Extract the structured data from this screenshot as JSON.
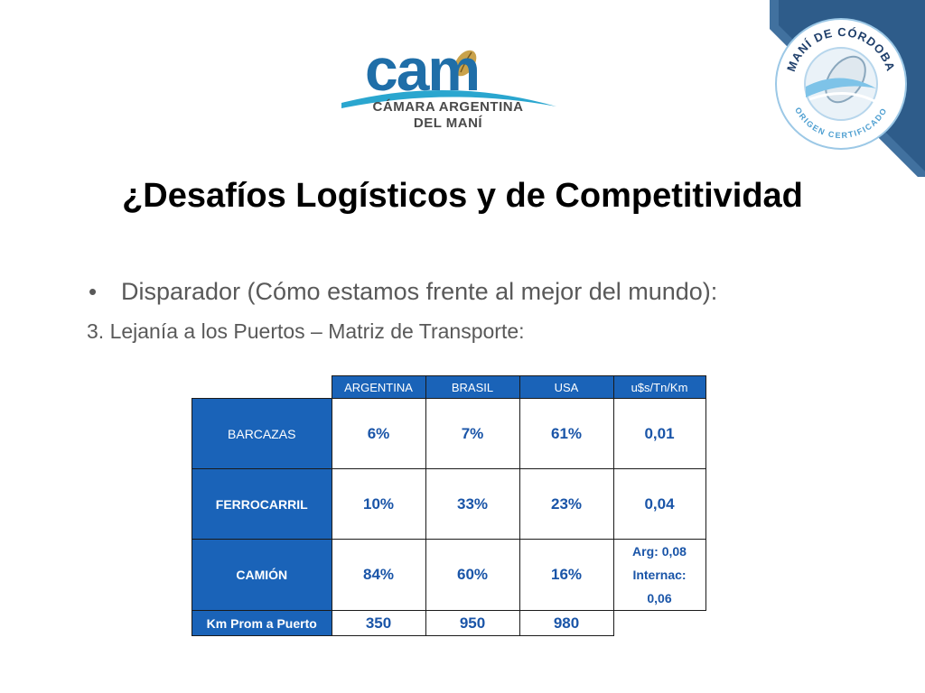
{
  "logo": {
    "wordmark": "cam",
    "line1": "CÁMARA ARGENTINA",
    "line2": "DEL MANÍ"
  },
  "seal": {
    "top_text": "MANÍ DE CÓRDOBA",
    "bottom_text": "ORIGEN CERTIFICADO"
  },
  "colors": {
    "accent_blue": "#1a63b8",
    "corner_blue": "#2e5c8a",
    "text_gray": "#595959",
    "logo_blue": "#1f6ea8"
  },
  "slide": {
    "title": "¿Desafíos Logísticos y de Competitividad",
    "bullet_marker": "•",
    "bullet": "Disparador (Cómo estamos frente al mejor del mundo):",
    "sub": "3.  Lejanía a los Puertos – Matriz de Transporte:"
  },
  "table": {
    "headers": [
      "ARGENTINA",
      "BRASIL",
      "USA",
      "u$s/Tn/Km"
    ],
    "rows": [
      {
        "label": "BARCAZAS",
        "values": [
          "6%",
          "7%",
          "61%"
        ],
        "cost": "0,01"
      },
      {
        "label": "FERROCARRIL",
        "values": [
          "10%",
          "33%",
          "23%"
        ],
        "cost": "0,04"
      },
      {
        "label": "CAMIÓN",
        "values": [
          "84%",
          "60%",
          "16%"
        ],
        "cost_lines": [
          "Arg: 0,08",
          "Internac:",
          "0,06"
        ]
      }
    ],
    "km_row": {
      "label": "Km Prom a Puerto",
      "values": [
        "350",
        "950",
        "980"
      ]
    }
  }
}
